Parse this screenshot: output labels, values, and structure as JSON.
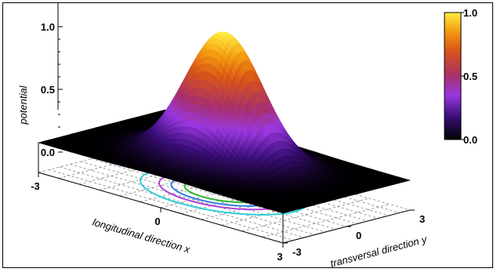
{
  "chart_data": {
    "type": "surface3d",
    "title": "",
    "zlabel": "potential",
    "xlabel": "longitudinal direction x",
    "ylabel": "transversal direction y",
    "x_ticks": [
      "-3",
      "0",
      "3"
    ],
    "y_ticks": [
      "-3",
      "0",
      "3"
    ],
    "z_ticks": [
      "0.0",
      "0.5",
      "1.0"
    ],
    "xlim": [
      -3,
      3
    ],
    "ylim": [
      -3,
      3
    ],
    "zlim": [
      0,
      1
    ],
    "peak": {
      "x": 0,
      "y": 0,
      "z": 1.0
    },
    "function": "gaussian",
    "colorbar": {
      "ticks": [
        "0.0",
        "0.5",
        "1.0"
      ],
      "range": [
        0,
        1
      ],
      "colors": [
        "#000000",
        "#5a1ca8",
        "#a040e0",
        "#b03a6a",
        "#d4551c",
        "#f08a10",
        "#ffe838"
      ]
    },
    "contours": [
      {
        "level": 0.1,
        "color": "#30d0d8"
      },
      {
        "level": 0.25,
        "color": "#b040d8"
      },
      {
        "level": 0.4,
        "color": "#3080e0"
      },
      {
        "level": 0.6,
        "color": "#30b830"
      }
    ],
    "grid": true
  }
}
